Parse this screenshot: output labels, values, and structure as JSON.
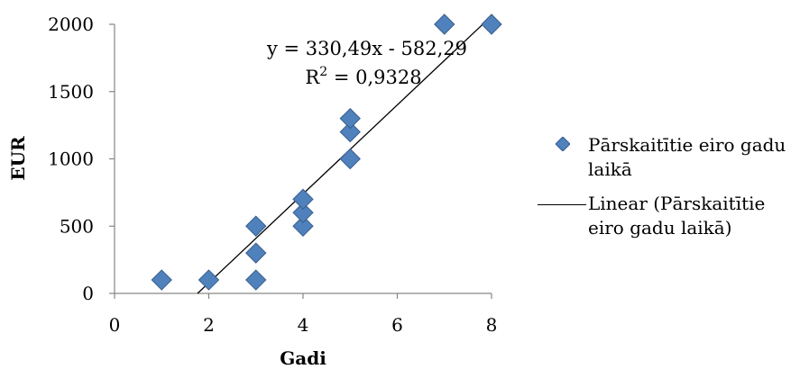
{
  "chart_data": {
    "type": "scatter",
    "xlabel": "Gadi",
    "ylabel": "EUR",
    "xlim": [
      0,
      8
    ],
    "ylim": [
      0,
      2000
    ],
    "x_ticks": [
      "0",
      "2",
      "4",
      "6",
      "8"
    ],
    "y_ticks": [
      "0",
      "500",
      "1000",
      "1500",
      "2000"
    ],
    "grid": false,
    "legend_position": "right",
    "series": [
      {
        "name": "Pārskaitītie eiro gadu laikā",
        "marker": "diamond",
        "color": "#4f81bd",
        "points": [
          {
            "x": 1,
            "y": 100
          },
          {
            "x": 2,
            "y": 100
          },
          {
            "x": 3,
            "y": 100
          },
          {
            "x": 3,
            "y": 300
          },
          {
            "x": 3,
            "y": 500
          },
          {
            "x": 4,
            "y": 500
          },
          {
            "x": 4,
            "y": 600
          },
          {
            "x": 4,
            "y": 700
          },
          {
            "x": 5,
            "y": 1000
          },
          {
            "x": 5,
            "y": 1200
          },
          {
            "x": 5,
            "y": 1300
          },
          {
            "x": 7,
            "y": 2000
          },
          {
            "x": 8,
            "y": 2000
          }
        ]
      }
    ],
    "trendline": {
      "name": "Linear (Pārskaitītie eiro gadu laikā)",
      "slope": 330.49,
      "intercept": -582.29,
      "equation_label": "y = 330,49x - 582,29",
      "r2_prefix": "R",
      "r2_exponent": "2",
      "r2_value": " = 0,9328",
      "color": "#000000"
    }
  }
}
